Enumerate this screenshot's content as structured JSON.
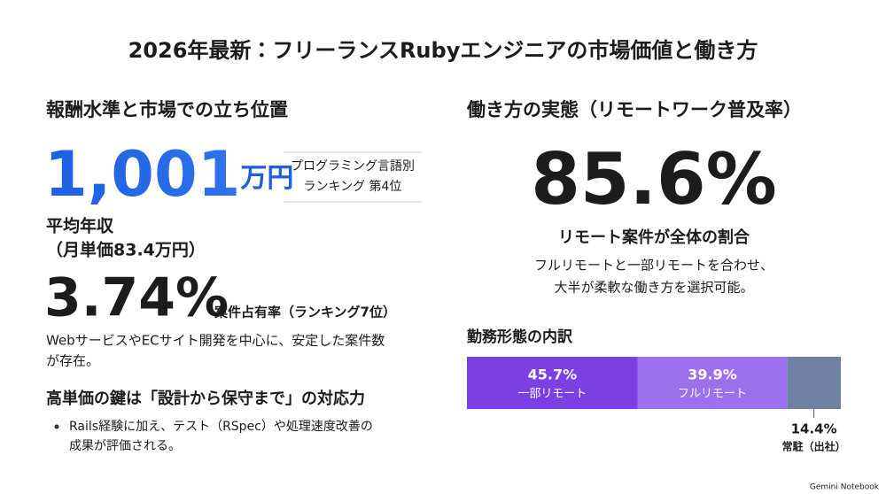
{
  "title": "2026年最新：フリーランスRubyエンジニアの市場価値と働き方",
  "left": {
    "heading": "報酬水準と市場での立ち位置",
    "salary": {
      "number": "1,001",
      "unit": "万円",
      "caption": "平均年収",
      "sub": "（月単価83.4万円）",
      "rank": [
        "プログラミング言語別",
        "ランキング 第4位"
      ]
    },
    "share": {
      "number": "3.74%",
      "caption": "案件占有率（ランキング7位）",
      "desc": [
        "WebサービスやECサイト開発を中心に、安定した案件数",
        "が存在。"
      ]
    },
    "key": {
      "heading": "高単価の鍵は「設計から保守まで」の対応力",
      "bullets": [
        [
          "Rails経験に加え、テスト（RSpec）や処理速度改善の",
          "成果が評価される。"
        ]
      ]
    }
  },
  "right": {
    "heading": "働き方の実態（リモートワーク普及率）",
    "rate": "85.6%",
    "rate_caption": "リモート案件が全体の割合",
    "desc": [
      "フルリモートと一部リモートを合わせ、",
      "大半が柔軟な働き方を選択可能。"
    ]
  },
  "chart_data": {
    "type": "stacked-bar",
    "title": "勤務形態の内訳",
    "series": [
      {
        "name": "一部リモート",
        "color": "#7b3fe4",
        "values": [
          45.7
        ],
        "value_labels": [
          "45.7%"
        ]
      },
      {
        "name": "フルリモート",
        "color": "#9d71ee",
        "values": [
          39.9
        ],
        "value_labels": [
          "39.9%"
        ]
      },
      {
        "name": "常駐（出社）",
        "color": "#6e81a3",
        "values": [
          14.4
        ],
        "value_labels": [
          "14.4%"
        ]
      }
    ]
  },
  "footer": "Gemini Notebook"
}
